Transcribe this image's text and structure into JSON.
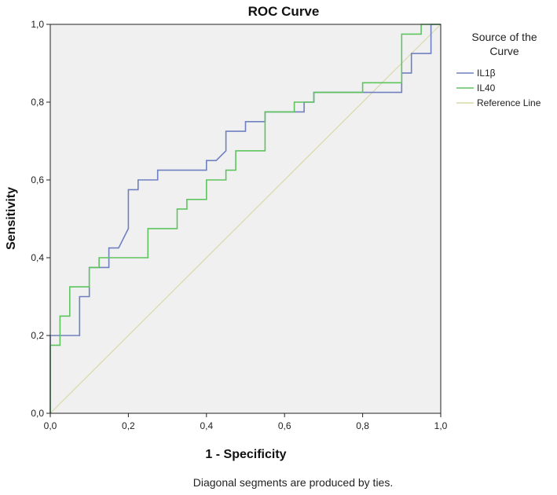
{
  "chart_data": {
    "type": "line",
    "title": "ROC Curve",
    "xlabel": "1 - Specificity",
    "ylabel": "Sensitivity",
    "footnote": "Diagonal segments are produced by ties.",
    "xlim": [
      0,
      1
    ],
    "ylim": [
      0,
      1
    ],
    "x_ticks": [
      0,
      0.2,
      0.4,
      0.6,
      0.8,
      1.0
    ],
    "y_ticks": [
      0,
      0.2,
      0.4,
      0.6,
      0.8,
      1.0
    ],
    "x_tick_labels": [
      "0,0",
      "0,2",
      "0,4",
      "0,6",
      "0,8",
      "1,0"
    ],
    "y_tick_labels": [
      "0,0",
      "0,2",
      "0,4",
      "0,6",
      "0,8",
      "1,0"
    ],
    "grid": false,
    "legend": {
      "title_lines": [
        "Source of the",
        "Curve"
      ],
      "placement": "right"
    },
    "series": [
      {
        "name": "IL1β",
        "color": "#6f80c0",
        "x": [
          0,
          0,
          0.025,
          0.025,
          0.075,
          0.075,
          0.1,
          0.1,
          0.15,
          0.15,
          0.175,
          0.2,
          0.2,
          0.225,
          0.225,
          0.275,
          0.275,
          0.4,
          0.4,
          0.425,
          0.45,
          0.45,
          0.5,
          0.5,
          0.55,
          0.55,
          0.575,
          0.575,
          0.65,
          0.65,
          0.675,
          0.675,
          0.9,
          0.9,
          0.925,
          0.925,
          0.975,
          0.975,
          1.0
        ],
        "y": [
          0,
          0.2,
          0.2,
          0.2,
          0.2,
          0.3,
          0.3,
          0.375,
          0.375,
          0.425,
          0.425,
          0.475,
          0.575,
          0.575,
          0.6,
          0.6,
          0.625,
          0.625,
          0.65,
          0.65,
          0.675,
          0.725,
          0.725,
          0.75,
          0.75,
          0.775,
          0.775,
          0.775,
          0.775,
          0.8,
          0.8,
          0.825,
          0.825,
          0.875,
          0.875,
          0.925,
          0.925,
          1.0,
          1.0
        ]
      },
      {
        "name": "IL40",
        "color": "#5ec45e",
        "x": [
          0,
          0,
          0.025,
          0.025,
          0.05,
          0.05,
          0.1,
          0.1,
          0.125,
          0.125,
          0.25,
          0.25,
          0.325,
          0.325,
          0.35,
          0.35,
          0.4,
          0.4,
          0.425,
          0.425,
          0.45,
          0.45,
          0.475,
          0.475,
          0.55,
          0.55,
          0.625,
          0.625,
          0.65,
          0.65,
          0.675,
          0.675,
          0.8,
          0.8,
          0.9,
          0.9,
          0.95,
          0.95,
          1.0
        ],
        "y": [
          0,
          0.175,
          0.175,
          0.25,
          0.25,
          0.325,
          0.325,
          0.375,
          0.375,
          0.4,
          0.4,
          0.475,
          0.475,
          0.525,
          0.525,
          0.55,
          0.55,
          0.6,
          0.6,
          0.6,
          0.6,
          0.625,
          0.625,
          0.675,
          0.675,
          0.775,
          0.775,
          0.8,
          0.8,
          0.8,
          0.8,
          0.825,
          0.825,
          0.85,
          0.85,
          0.975,
          0.975,
          1.0,
          1.0
        ]
      },
      {
        "name": "Reference Line",
        "color": "#d9d9a8",
        "x": [
          0,
          1
        ],
        "y": [
          0,
          1
        ]
      }
    ]
  },
  "colors": {
    "plot_background": "#f0f0f0",
    "axis": "#222222"
  }
}
